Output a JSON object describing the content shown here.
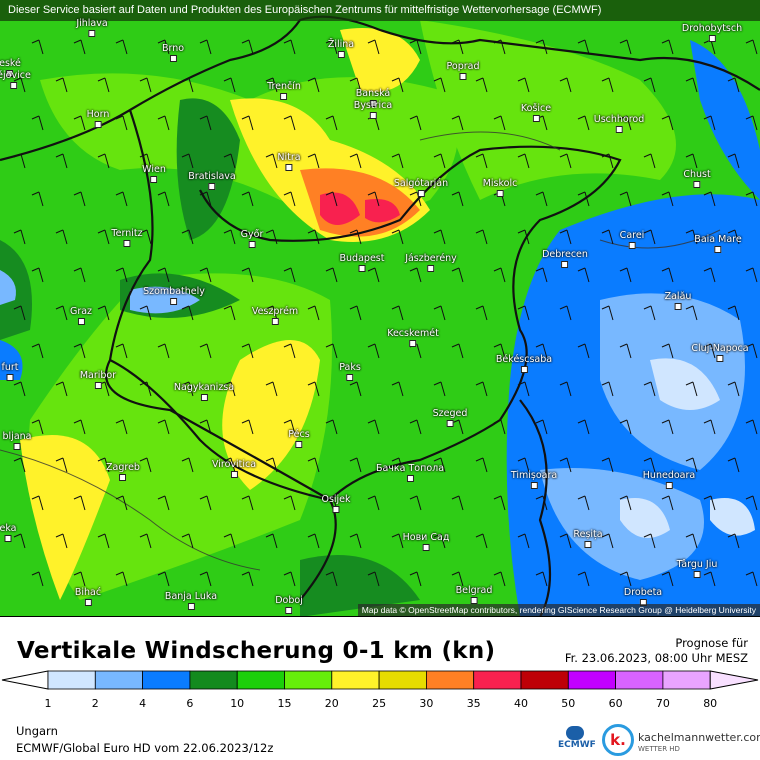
{
  "banner": "Dieser Service basiert auf Daten und Produkten des Europäischen Zentrums für mittelfristige Wettervorhersage  (ECMWF)",
  "cities": [
    "Jihlava",
    "Brno",
    "Žilina",
    "Poprad",
    "Drohobytsch",
    "eské",
    "ějovice",
    "Trenčín",
    "Banská",
    "Bystrica",
    "Košice",
    "Uschhorod",
    "Horn",
    "Nitra",
    "Wien",
    "Bratislava",
    "Salgótarján",
    "Miskolc",
    "Chust",
    "Ternitz",
    "Győr",
    "Budapest",
    "Jászberény",
    "Debrecen",
    "Carei",
    "Baia Mare",
    "Szombathely",
    "Zalău",
    "Graz",
    "Veszprém",
    "Kecskemét",
    "Cluj-Napoca",
    "Békéscsaba",
    "Paks",
    "Maribor",
    "furt",
    "Nagykanizsa",
    "Szeged",
    "Pécs",
    "bljana",
    "Zagreb",
    "Virovitica",
    "Бачка Топола",
    "Timișoara",
    "Hunedoara",
    "Osijek",
    "eka",
    "Reșița",
    "Нови Сад",
    "Târgu Jiu",
    "Bihać",
    "Banja Luka",
    "Doboj",
    "Belgrad",
    "Drobeta"
  ],
  "attribution": "Map data © OpenStreetMap contributors, rendering GIScience Research Group @ Heidelberg University",
  "title": "Vertikale Windscherung 0-1 km (kn)",
  "forecast_label": "Prognose für",
  "forecast_time": "Fr. 23.06.2023, 08:00 Uhr MESZ",
  "legend": {
    "ticks": [
      "1",
      "2",
      "4",
      "6",
      "10",
      "15",
      "20",
      "25",
      "30",
      "35",
      "40",
      "50",
      "60",
      "70",
      "80"
    ],
    "colors": [
      "#d0e6ff",
      "#78b8ff",
      "#0a7cff",
      "#138a1e",
      "#1ccf0a",
      "#66ee0a",
      "#fff22a",
      "#e6dc00",
      "#ff8024",
      "#f8214f",
      "#be0007",
      "#c200ff",
      "#d863ff",
      "#e9a4ff"
    ],
    "low_color": "#ffffff",
    "high_color": "#f8e0ff"
  },
  "region": "Ungarn",
  "model": "ECMWF/Global Euro HD vom  22.06.2023/12z",
  "logos": {
    "ecmwf": "ECMWF",
    "kachelmann": "kachelmannwetter.com",
    "kachelmann_sub": "WETTER HD",
    "k": "k."
  }
}
